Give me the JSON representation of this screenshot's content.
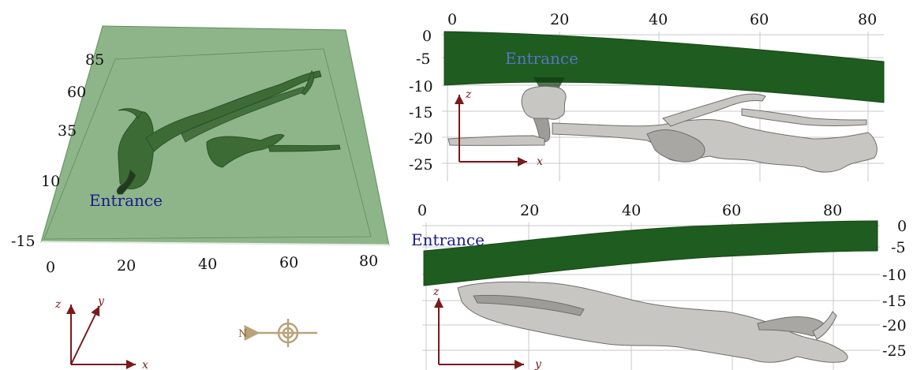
{
  "colors": {
    "surface_fill": "#7aa874",
    "surface_dark": "#1f5c1f",
    "cave_green": "#3d6b36",
    "cave_gray": "#c8c6c2",
    "cave_gray_dark": "#6f6e6b",
    "axis_arrow": "#7a1a1a",
    "entrance_blue_dark": "#1a1a8a",
    "entrance_blue_light": "#5b72c8",
    "compass": "#b8a27a",
    "grid": "#c9c9c9"
  },
  "panels": {
    "perspective": {
      "entrance_label": "Entrance",
      "z_ticks": [
        "85",
        "60",
        "35",
        "10",
        "-15"
      ],
      "x_ticks": [
        "0",
        "20",
        "40",
        "60",
        "80"
      ],
      "axes": {
        "z": "z",
        "y": "y",
        "x": "x"
      },
      "compass": {
        "label": "N",
        "icon": "compass-icon"
      }
    },
    "side_top": {
      "entrance_label": "Entrance",
      "x_ticks": [
        "0",
        "20",
        "40",
        "60",
        "80"
      ],
      "y_ticks": [
        "0",
        "-5",
        "-10",
        "-15",
        "-20",
        "-25"
      ],
      "axes": {
        "vertical": "z",
        "horizontal": "x"
      }
    },
    "side_bottom": {
      "entrance_label": "Entrance",
      "x_ticks": [
        "0",
        "20",
        "40",
        "60",
        "80"
      ],
      "y_ticks": [
        "0",
        "-5",
        "-10",
        "-15",
        "-20",
        "-25"
      ],
      "axes": {
        "vertical": "z",
        "horizontal": "y"
      }
    }
  }
}
